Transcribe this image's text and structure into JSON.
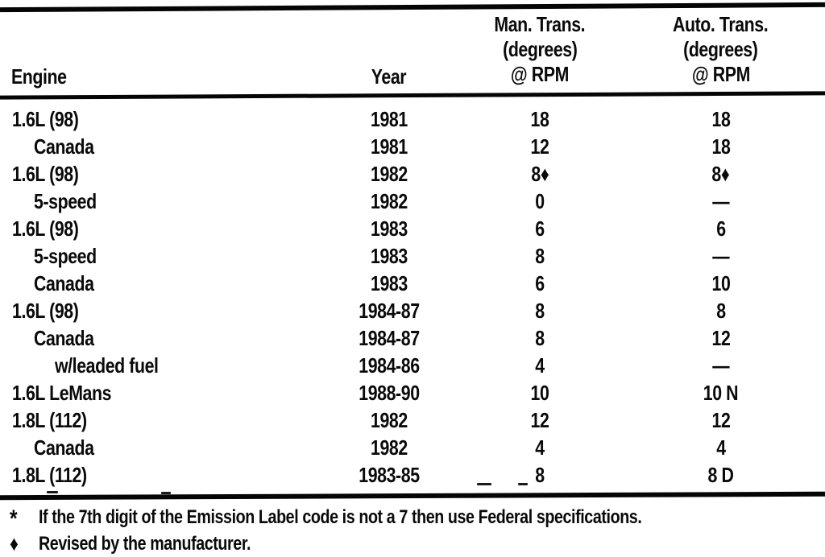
{
  "table": {
    "columns": {
      "engine": "Engine",
      "year": "Year",
      "man_trans": [
        "Man. Trans.",
        "(degrees)",
        "@ RPM"
      ],
      "auto_trans": [
        "Auto. Trans.",
        "(degrees)",
        "@ RPM"
      ]
    },
    "rows": [
      {
        "engine": "1.6L (98)",
        "indent": 0,
        "year": "1981",
        "man": "18",
        "auto": "18"
      },
      {
        "engine": "Canada",
        "indent": 1,
        "year": "1981",
        "man": "12",
        "auto": "18"
      },
      {
        "engine": "1.6L (98)",
        "indent": 0,
        "year": "1982",
        "man": "8♦",
        "auto": "8♦"
      },
      {
        "engine": "5-speed",
        "indent": 1,
        "year": "1982",
        "man": "0",
        "auto": "—"
      },
      {
        "engine": "1.6L (98)",
        "indent": 0,
        "year": "1983",
        "man": "6",
        "auto": "6"
      },
      {
        "engine": "5-speed",
        "indent": 1,
        "year": "1983",
        "man": "8",
        "auto": "—"
      },
      {
        "engine": "Canada",
        "indent": 1,
        "year": "1983",
        "man": "6",
        "auto": "10"
      },
      {
        "engine": "1.6L (98)",
        "indent": 0,
        "year": "1984-87",
        "man": "8",
        "auto": "8"
      },
      {
        "engine": "Canada",
        "indent": 1,
        "year": "1984-87",
        "man": "8",
        "auto": "12"
      },
      {
        "engine": "w/leaded fuel",
        "indent": 2,
        "year": "1984-86",
        "man": "4",
        "auto": "—"
      },
      {
        "engine": "1.6L LeMans",
        "indent": 0,
        "year": "1988-90",
        "man": "10",
        "auto": "10 N"
      },
      {
        "engine": "1.8L (112)",
        "indent": 0,
        "year": "1982",
        "man": "12",
        "auto": "12"
      },
      {
        "engine": "Canada",
        "indent": 1,
        "year": "1982",
        "man": "4",
        "auto": "4"
      },
      {
        "engine": "1.8L (112)",
        "indent": 0,
        "year": "1983-85",
        "man": "8",
        "auto": "8 D"
      }
    ]
  },
  "footnotes": [
    {
      "marker": "*",
      "text": "If the 7th digit of the Emission Label code is not a 7 then use Federal specifications."
    },
    {
      "marker": "♦",
      "text": "Revised by the manufacturer."
    }
  ],
  "colors": {
    "ink": "#0a0a0a",
    "paper": "#ffffff"
  }
}
